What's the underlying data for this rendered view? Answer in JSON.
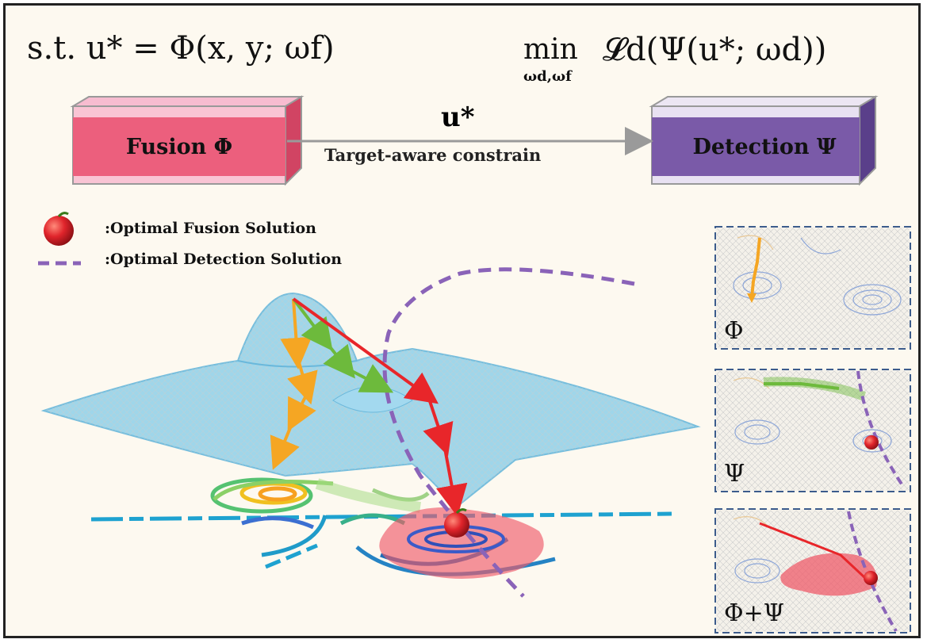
{
  "equations": {
    "constraint": "s.t. u* = Φ(x, y; ωf)",
    "objective_operator": "min",
    "objective_subscript": "ωd,ωf",
    "objective_body": "𝓛d(Ψ(u*; ωd))"
  },
  "fusion_box": {
    "label": "Fusion Φ",
    "color": "#ec5f7d"
  },
  "detection_box": {
    "label": "Detection Ψ",
    "color": "#7a5aa8"
  },
  "connection": {
    "symbol": "u*",
    "label": "Target-aware constrain"
  },
  "legend": {
    "fusion": ":Optimal Fusion Solution",
    "detection": ":Optimal Detection Solution"
  },
  "panels": [
    {
      "label": "Φ"
    },
    {
      "label": "Ψ"
    },
    {
      "label": "Φ+Ψ"
    }
  ],
  "colors": {
    "surface": "#8fd0ea",
    "fusion_path": "#f5a623",
    "detection_path": "#6dba3c",
    "joint_path": "#e8262a",
    "detection_curve": "#8a63b8",
    "apple": "#d8232a"
  }
}
